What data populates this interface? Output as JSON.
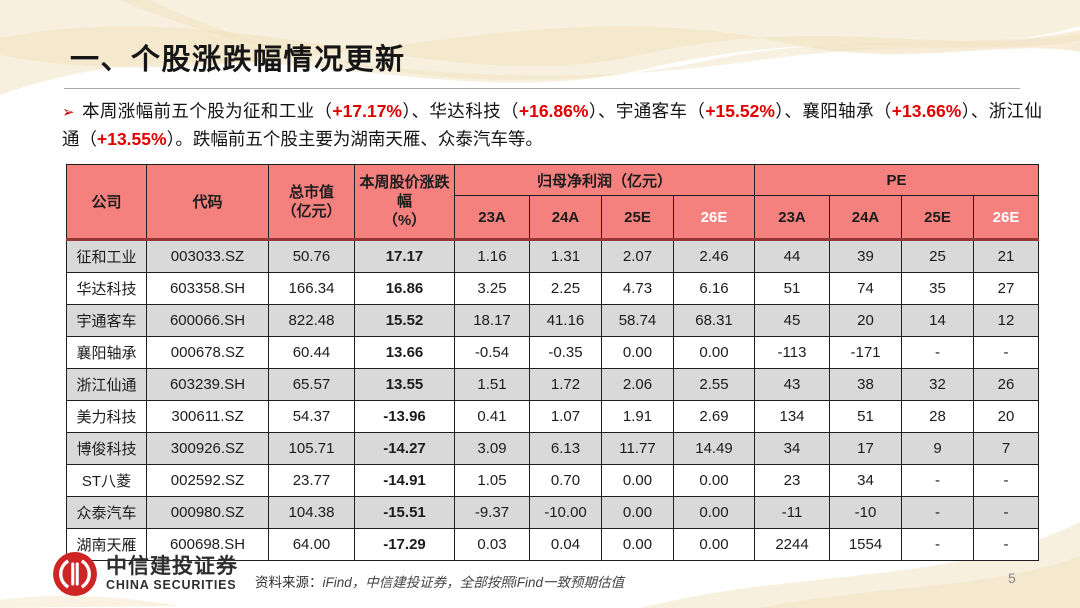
{
  "header": {
    "title": "一、个股涨跌幅情况更新"
  },
  "summary": {
    "bullet": "➢",
    "segments": [
      {
        "t": "本周涨幅前五个股为征和工业（",
        "red": false
      },
      {
        "t": "+17.17%",
        "red": true
      },
      {
        "t": "）、华达科技（",
        "red": false
      },
      {
        "t": "+16.86%",
        "red": true
      },
      {
        "t": "）、宇通客车（",
        "red": false
      },
      {
        "t": "+15.52%",
        "red": true
      },
      {
        "t": "）、襄阳轴承（",
        "red": false
      },
      {
        "t": "+13.66%",
        "red": true
      },
      {
        "t": "）、浙江仙通（",
        "red": false
      },
      {
        "t": "+13.55%",
        "red": true
      },
      {
        "t": "）。跌幅前五个股主要为湖南天雁、众泰汽车等。",
        "red": false
      }
    ]
  },
  "table": {
    "header": {
      "company": "公司",
      "code": "代码",
      "market_cap_line1": "总市值",
      "market_cap_line2": "（亿元）",
      "weekly_line1": "本周股价涨跌幅",
      "weekly_line2": "（%）",
      "profit_group": "归母净利润（亿元）",
      "pe_group": "PE",
      "sub_columns": [
        {
          "label": "23A",
          "white": false
        },
        {
          "label": "24A",
          "white": false
        },
        {
          "label": "25E",
          "white": false
        },
        {
          "label": "26E",
          "white": true
        }
      ]
    },
    "rows": [
      {
        "company": "征和工业",
        "code": "003033.SZ",
        "market_cap": "50.76",
        "weekly_change": "17.17",
        "profit": [
          "1.16",
          "1.31",
          "2.07",
          "2.46"
        ],
        "pe": [
          "44",
          "39",
          "25",
          "21"
        ]
      },
      {
        "company": "华达科技",
        "code": "603358.SH",
        "market_cap": "166.34",
        "weekly_change": "16.86",
        "profit": [
          "3.25",
          "2.25",
          "4.73",
          "6.16"
        ],
        "pe": [
          "51",
          "74",
          "35",
          "27"
        ]
      },
      {
        "company": "宇通客车",
        "code": "600066.SH",
        "market_cap": "822.48",
        "weekly_change": "15.52",
        "profit": [
          "18.17",
          "41.16",
          "58.74",
          "68.31"
        ],
        "pe": [
          "45",
          "20",
          "14",
          "12"
        ]
      },
      {
        "company": "襄阳轴承",
        "code": "000678.SZ",
        "market_cap": "60.44",
        "weekly_change": "13.66",
        "profit": [
          "-0.54",
          "-0.35",
          "0.00",
          "0.00"
        ],
        "pe": [
          "-113",
          "-171",
          "-",
          "-"
        ]
      },
      {
        "company": "浙江仙通",
        "code": "603239.SH",
        "market_cap": "65.57",
        "weekly_change": "13.55",
        "profit": [
          "1.51",
          "1.72",
          "2.06",
          "2.55"
        ],
        "pe": [
          "43",
          "38",
          "32",
          "26"
        ]
      },
      {
        "company": "美力科技",
        "code": "300611.SZ",
        "market_cap": "54.37",
        "weekly_change": "-13.96",
        "profit": [
          "0.41",
          "1.07",
          "1.91",
          "2.69"
        ],
        "pe": [
          "134",
          "51",
          "28",
          "20"
        ]
      },
      {
        "company": "博俊科技",
        "code": "300926.SZ",
        "market_cap": "105.71",
        "weekly_change": "-14.27",
        "profit": [
          "3.09",
          "6.13",
          "11.77",
          "14.49"
        ],
        "pe": [
          "34",
          "17",
          "9",
          "7"
        ]
      },
      {
        "company": "ST八菱",
        "code": "002592.SZ",
        "market_cap": "23.77",
        "weekly_change": "-14.91",
        "profit": [
          "1.05",
          "0.70",
          "0.00",
          "0.00"
        ],
        "pe": [
          "23",
          "34",
          "-",
          "-"
        ]
      },
      {
        "company": "众泰汽车",
        "code": "000980.SZ",
        "market_cap": "104.38",
        "weekly_change": "-15.51",
        "profit": [
          "-9.37",
          "-10.00",
          "0.00",
          "0.00"
        ],
        "pe": [
          "-11",
          "-10",
          "-",
          "-"
        ]
      },
      {
        "company": "湖南天雁",
        "code": "600698.SH",
        "market_cap": "64.00",
        "weekly_change": "-17.29",
        "profit": [
          "0.03",
          "0.04",
          "0.00",
          "0.00"
        ],
        "pe": [
          "2244",
          "1554",
          "-",
          "-"
        ]
      }
    ]
  },
  "footer": {
    "logo_cn": "中信建投证券",
    "logo_en": "CHINA SECURITIES",
    "source_label": "资料来源：",
    "source_text": "iFind，中信建投证券，全部按照iFind一致预期估值"
  },
  "page": {
    "number": "5"
  },
  "colors": {
    "header_bg": "#F5817F",
    "alt_row_bg": "#D9D9D9",
    "up_red": "#D93632",
    "down_green": "#35AD6B",
    "highlight_red": "#E00000",
    "bullet_red": "#C00000",
    "header_separator": "#943735",
    "logo_red": "#CE2524",
    "decor_cream": "#F8F0DE"
  }
}
